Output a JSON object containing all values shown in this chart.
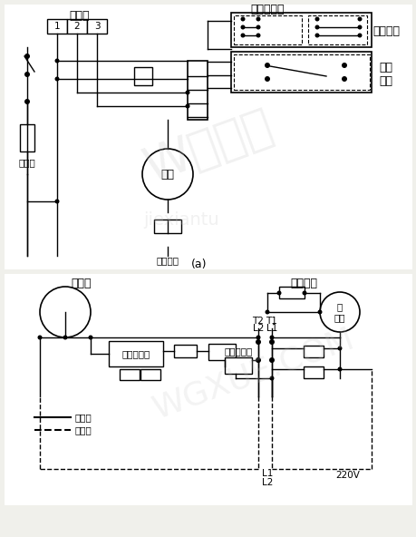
{
  "bg_color": "#f0f0eb",
  "line_color": "#000000",
  "labels": {
    "jiechuqi": "接触器",
    "wendukongzhiqi": "温度控制器",
    "xuanze_kaiguan": "选择开关",
    "fengshan_kaiguan": "风扇\n开关",
    "dianshe": "电热丝",
    "fengji": "风机",
    "yunxing_diandong": "运行电容",
    "a_label": "(a)",
    "yasouji": "压缩机",
    "yunzhuan_diandong": "运转电容",
    "diandonji": "电\n动机",
    "qidong_diandong": "起动电容器",
    "qidong_jidianqi": "起动继电器",
    "t2l2": "T2\nL2",
    "t1l1": "T1\nL1",
    "jinei_xian": "机内线",
    "jiwai_xian": "机外线",
    "v220": "220V",
    "l1": "L1",
    "l2": "L2",
    "num1": "1",
    "num2": "2",
    "num3": "3"
  },
  "font_size_label": 9,
  "font_size_small": 7.5,
  "fig_width": 4.6,
  "fig_height": 5.92
}
